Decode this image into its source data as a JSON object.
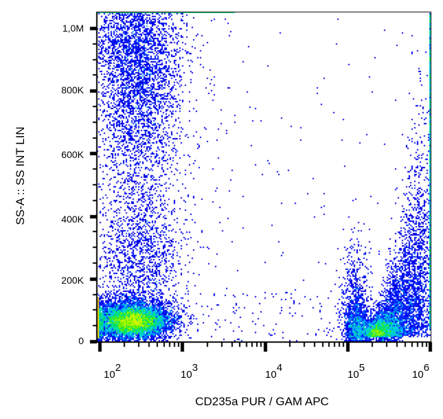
{
  "chart_data": {
    "type": "scatter",
    "subtype": "flow-cytometry-density-dot-plot",
    "title": "",
    "xlabel": "CD235a PUR / GAM APC",
    "ylabel": "SS-A :: SS INT LIN",
    "x_scale": "log",
    "y_scale": "linear",
    "xlim": [
      70,
      1000000
    ],
    "ylim": [
      0,
      1050000
    ],
    "x_ticks": [
      {
        "base": "10",
        "exp": "2",
        "value": 100
      },
      {
        "base": "10",
        "exp": "3",
        "value": 1000
      },
      {
        "base": "10",
        "exp": "4",
        "value": 10000
      },
      {
        "base": "10",
        "exp": "5",
        "value": 100000
      },
      {
        "base": "10",
        "exp": "6",
        "value": 1000000
      }
    ],
    "y_ticks": [
      {
        "label": "0",
        "value": 0
      },
      {
        "label": "200K",
        "value": 200000
      },
      {
        "label": "400K",
        "value": 400000
      },
      {
        "label": "600K",
        "value": 600000
      },
      {
        "label": "800K",
        "value": 800000
      },
      {
        "label": "1,0M",
        "value": 1000000
      }
    ],
    "grid": false,
    "legend": "none",
    "color_scale": [
      "#0000ee",
      "#00bfff",
      "#00e58a",
      "#7fff00",
      "#ffff00",
      "#ff8800"
    ],
    "populations": [
      {
        "name": "CD235a-negative low-SS cluster",
        "x_center": 250,
        "y_center": 70000,
        "x_range": [
          70,
          600
        ],
        "y_range": [
          10000,
          150000
        ],
        "density": "high"
      },
      {
        "name": "CD235a-negative high-SS population",
        "x_center": 280,
        "y_center": 850000,
        "x_range": [
          80,
          900
        ],
        "y_range": [
          500000,
          1050000
        ],
        "density": "medium"
      },
      {
        "name": "CD235a-negative mid-SS scatter",
        "x_center": 300,
        "y_center": 300000,
        "x_range": [
          100,
          1500
        ],
        "y_range": [
          150000,
          500000
        ],
        "density": "low"
      },
      {
        "name": "CD235a-positive cluster 1",
        "x_center": 130000,
        "y_center": 50000,
        "x_range": [
          90000,
          200000
        ],
        "y_range": [
          5000,
          250000
        ],
        "density": "medium"
      },
      {
        "name": "CD235a-positive cluster 2",
        "x_center": 400000,
        "y_center": 150000,
        "x_range": [
          200000,
          1000000
        ],
        "y_range": [
          10000,
          600000
        ],
        "density": "medium"
      }
    ]
  },
  "axes": {
    "x_title": "CD235a PUR / GAM APC",
    "y_title": "SS-A :: SS INT LIN"
  }
}
